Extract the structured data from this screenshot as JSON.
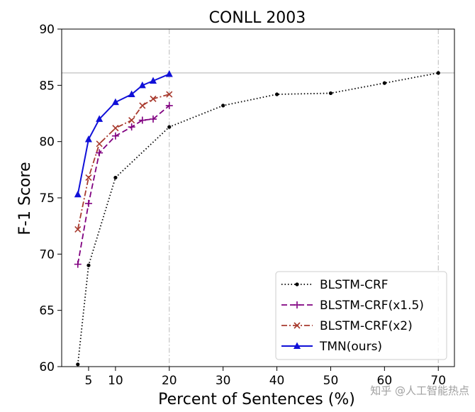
{
  "chart_data": {
    "type": "line",
    "title": "CONLL 2003",
    "xlabel": "Percent of Sentences (%)",
    "ylabel": "F-1 Score",
    "xlim": [
      0,
      73
    ],
    "ylim": [
      60,
      90
    ],
    "xticks": [
      5,
      10,
      20,
      30,
      40,
      50,
      60,
      70
    ],
    "yticks": [
      60,
      65,
      70,
      75,
      80,
      85,
      90
    ],
    "grid": false,
    "reference_lines": {
      "horizontal_y": 86.1,
      "vertical_x": [
        20,
        70
      ]
    },
    "legend_position": "lower-right",
    "series": [
      {
        "name": "BLSTM-CRF",
        "color": "#000000",
        "style": "dotted",
        "marker": "dot",
        "x": [
          3,
          5,
          10,
          20,
          30,
          40,
          50,
          60,
          70
        ],
        "y": [
          60.2,
          69.0,
          76.8,
          81.3,
          83.2,
          84.2,
          84.3,
          85.2,
          86.1
        ]
      },
      {
        "name": "BLSTM-CRF(x1.5)",
        "color": "#800080",
        "style": "dashed",
        "marker": "plus",
        "x": [
          3,
          5,
          7,
          10,
          13,
          15,
          17,
          20
        ],
        "y": [
          69.1,
          74.5,
          79.0,
          80.5,
          81.3,
          81.9,
          82.0,
          83.2
        ]
      },
      {
        "name": "BLSTM-CRF(x2)",
        "color": "#a83a2e",
        "style": "dashdot",
        "marker": "x",
        "x": [
          3,
          5,
          7,
          10,
          13,
          15,
          17,
          20
        ],
        "y": [
          72.2,
          76.8,
          79.8,
          81.2,
          81.9,
          83.2,
          83.8,
          84.2
        ]
      },
      {
        "name": "TMN(ours)",
        "color": "#1010d8",
        "style": "solid",
        "marker": "triangle",
        "x": [
          3,
          5,
          7,
          10,
          13,
          15,
          17,
          20
        ],
        "y": [
          75.3,
          80.2,
          82.0,
          83.5,
          84.2,
          85.0,
          85.4,
          86.0
        ]
      }
    ]
  },
  "watermark": "知乎 @人工智能热点"
}
